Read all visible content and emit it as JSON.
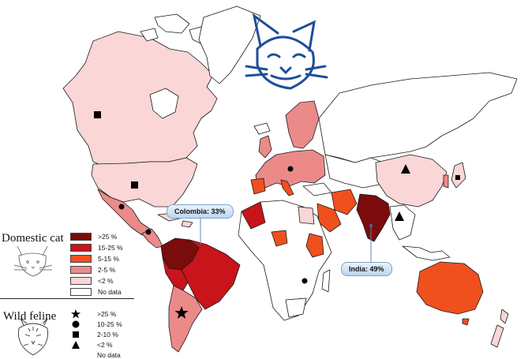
{
  "domestic_cat": {
    "title": "Domestic cat",
    "legend": [
      {
        "label": ">25 %",
        "color": "#7a0c0c"
      },
      {
        "label": "15-25 %",
        "color": "#c8141a"
      },
      {
        "label": "5-15 %",
        "color": "#f0501e"
      },
      {
        "label": "2-5 %",
        "color": "#ec8a8a"
      },
      {
        "label": "<2 %",
        "color": "#fad6d6"
      },
      {
        "label": "No data",
        "color": "#ffffff"
      }
    ]
  },
  "wild_feline": {
    "title": "Wild feline",
    "legend": [
      {
        "label": ">25 %",
        "symbol": "star"
      },
      {
        "label": "10-25 %",
        "symbol": "circle"
      },
      {
        "label": "2-10 %",
        "symbol": "square"
      },
      {
        "label": "<2 %",
        "symbol": "triangle"
      },
      {
        "label": "No data",
        "symbol": "none"
      }
    ]
  },
  "callouts": {
    "colombia": "Colombia: 33%",
    "india": "India: 49%"
  },
  "colors": {
    "water": "#ffffff",
    "border": "#1a1a1a",
    "callout_line": "#5b87b8",
    "logo": "#1d4f9a"
  }
}
